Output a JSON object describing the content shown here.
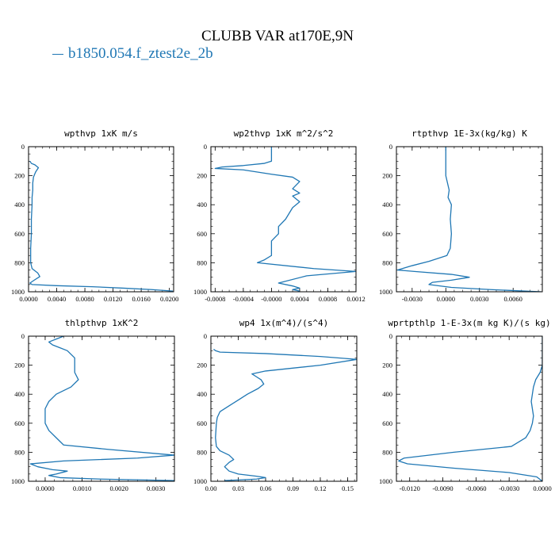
{
  "title": "CLUBB VAR at170E,9N",
  "legend": {
    "label": "b1850.054.f_ztest2e_2b",
    "color": "#1f77b4"
  },
  "chart_data": [
    {
      "type": "line",
      "title": "wpthvp  1xK m/s",
      "xlim": [
        0.0,
        0.0206
      ],
      "ylim": [
        0,
        1000
      ],
      "x_ticks": [
        0.0,
        0.004,
        0.008,
        0.012,
        0.016,
        0.02
      ],
      "x_tick_labels": [
        "0.0000",
        "0.0040",
        "0.0080",
        "0.0120",
        "0.0160",
        "0.0200"
      ],
      "y_ticks": [
        0,
        200,
        400,
        600,
        800,
        1000
      ],
      "y_tick_labels": [
        "0",
        "200",
        "400",
        "600",
        "800",
        "1000"
      ],
      "series": [
        {
          "color": "#1f77b4",
          "x": [
            0.0002,
            0.0004,
            0.0009,
            0.0014,
            0.001,
            0.0007,
            0.0006,
            0.0006,
            0.0005,
            0.0005,
            0.0004,
            0.0004,
            0.0003,
            0.0003,
            0.0005,
            0.0013,
            0.0016,
            0.0008,
            0.0002,
            0.0005,
            0.004,
            0.009,
            0.0135,
            0.0175,
            0.0205
          ],
          "y": [
            100,
            115,
            125,
            145,
            175,
            210,
            250,
            300,
            350,
            400,
            500,
            600,
            700,
            800,
            840,
            870,
            895,
            920,
            940,
            950,
            958,
            965,
            975,
            985,
            995
          ]
        }
      ]
    },
    {
      "type": "line",
      "title": "wp2thvp  1xK m^2/s^2",
      "xlim": [
        -0.00086,
        0.0012
      ],
      "ylim": [
        0,
        1000
      ],
      "x_ticks": [
        -0.0008,
        -0.0004,
        0.0,
        0.0004,
        0.0008,
        0.0012
      ],
      "x_tick_labels": [
        "-0.0008",
        "-0.0004",
        "-0.0000",
        "0.0004",
        "0.0008",
        "0.0012"
      ],
      "y_ticks": [
        0,
        200,
        400,
        600,
        800,
        1000
      ],
      "y_tick_labels": [
        "0",
        "200",
        "400",
        "600",
        "800",
        "1000"
      ],
      "series": [
        {
          "color": "#1f77b4",
          "x": [
            0.0,
            0.0,
            -0.0001,
            -0.0004,
            -0.0007,
            -0.0008,
            -0.0004,
            0.0,
            0.0003,
            0.0004,
            0.0003,
            0.0004,
            0.0003,
            0.0004,
            0.0003,
            0.0002,
            0.0001,
            0.0001,
            0.0,
            0.0,
            0.0,
            -0.0001,
            -0.0002,
            0.0006,
            0.0012,
            0.0005,
            0.0001,
            0.0003,
            0.0004,
            0.0003,
            0.0004
          ],
          "y": [
            0,
            100,
            115,
            130,
            140,
            150,
            160,
            190,
            210,
            240,
            290,
            320,
            340,
            380,
            420,
            500,
            550,
            600,
            650,
            700,
            750,
            780,
            800,
            840,
            860,
            890,
            940,
            960,
            975,
            985,
            995
          ]
        }
      ]
    },
    {
      "type": "line",
      "title": "rtpthvp  1E-3x(kg/kg) K",
      "xlim": [
        -0.0044,
        0.0086
      ],
      "ylim": [
        0,
        1000
      ],
      "x_ticks": [
        -0.003,
        0.0,
        0.003,
        0.006
      ],
      "x_tick_labels": [
        "-0.0030",
        "0.0000",
        "0.0030",
        "0.0060"
      ],
      "y_ticks": [
        0,
        200,
        400,
        600,
        800,
        1000
      ],
      "y_tick_labels": [
        "0",
        "200",
        "400",
        "600",
        "800",
        "1000"
      ],
      "series": [
        {
          "color": "#1f77b4",
          "x": [
            0.0,
            0.0,
            0.0,
            0.0003,
            0.0002,
            0.0005,
            0.0004,
            0.0005,
            0.0004,
            0.0001,
            -0.0015,
            -0.003,
            -0.0043,
            -0.0028,
            0.0005,
            0.0021,
            0.0005,
            -0.0012,
            -0.0015,
            0.0005,
            0.004,
            0.0085
          ],
          "y": [
            0,
            100,
            200,
            300,
            350,
            400,
            500,
            600,
            700,
            750,
            790,
            820,
            850,
            860,
            880,
            900,
            920,
            935,
            950,
            970,
            985,
            1000
          ]
        }
      ]
    },
    {
      "type": "line",
      "title": "thlpthvp  1xK^2",
      "xlim": [
        -0.00045,
        0.0035
      ],
      "ylim": [
        0,
        1000
      ],
      "x_ticks": [
        0.0,
        0.001,
        0.002,
        0.003
      ],
      "x_tick_labels": [
        "0.0000",
        "0.0010",
        "0.0020",
        "0.0030"
      ],
      "y_ticks": [
        0,
        200,
        400,
        600,
        800,
        1000
      ],
      "y_tick_labels": [
        "0",
        "200",
        "400",
        "600",
        "800",
        "1000"
      ],
      "series": [
        {
          "color": "#1f77b4",
          "x": [
            0.0005,
            0.0003,
            0.0001,
            0.0002,
            0.0004,
            0.0006,
            0.0008,
            0.0008,
            0.0008,
            0.0009,
            0.0007,
            0.0003,
            0.0001,
            0.0,
            0.0,
            0.0001,
            0.0003,
            0.0005,
            0.0017,
            0.0035,
            0.0025,
            0.0005,
            -0.0004,
            -0.0002,
            0.0002,
            0.0006,
            0.0003,
            0.0001,
            0.0004,
            0.0015,
            0.0035
          ],
          "y": [
            0,
            20,
            40,
            60,
            80,
            100,
            150,
            200,
            250,
            300,
            350,
            400,
            450,
            500,
            600,
            650,
            700,
            750,
            780,
            820,
            840,
            860,
            880,
            900,
            920,
            930,
            950,
            960,
            975,
            985,
            995
          ]
        }
      ]
    },
    {
      "type": "line",
      "title": "wp4  1x(m^4)/(s^4)",
      "xlim": [
        0.0,
        0.16
      ],
      "ylim": [
        0,
        1000
      ],
      "x_ticks": [
        0.0,
        0.03,
        0.06,
        0.09,
        0.12,
        0.15
      ],
      "x_tick_labels": [
        "0.00",
        "0.03",
        "0.06",
        "0.09",
        "0.12",
        "0.15"
      ],
      "y_ticks": [
        0,
        200,
        400,
        600,
        800,
        1000
      ],
      "y_tick_labels": [
        "0",
        "200",
        "400",
        "600",
        "800",
        "1000"
      ],
      "series": [
        {
          "color": "#1f77b4",
          "x": [
            0.003,
            0.005,
            0.01,
            0.06,
            0.12,
            0.16,
            0.12,
            0.06,
            0.045,
            0.05,
            0.055,
            0.058,
            0.052,
            0.04,
            0.03,
            0.02,
            0.01,
            0.007,
            0.006,
            0.005,
            0.006,
            0.01,
            0.02,
            0.025,
            0.02,
            0.015,
            0.02,
            0.03,
            0.05,
            0.06,
            0.05,
            0.015
          ],
          "y": [
            90,
            100,
            110,
            120,
            140,
            160,
            200,
            240,
            260,
            280,
            300,
            330,
            360,
            400,
            440,
            480,
            520,
            560,
            600,
            700,
            760,
            790,
            820,
            850,
            870,
            900,
            930,
            950,
            965,
            975,
            985,
            995
          ]
        }
      ]
    },
    {
      "type": "line",
      "title": "wprtpthlp  1-E-3x(m kg K)/(s kg)",
      "xlim": [
        -0.0132,
        0.0
      ],
      "ylim": [
        0,
        1000
      ],
      "x_ticks": [
        -0.012,
        -0.009,
        -0.006,
        -0.003,
        0.0
      ],
      "x_tick_labels": [
        "-0.0120",
        "-0.0090",
        "-0.0060",
        "-0.0030",
        "0.0000"
      ],
      "y_ticks": [
        0,
        200,
        400,
        600,
        800,
        1000
      ],
      "y_tick_labels": [
        "0",
        "200",
        "400",
        "600",
        "800",
        "1000"
      ],
      "series": [
        {
          "color": "#1f77b4",
          "x": [
            0.0,
            0.0,
            0.0,
            -0.0002,
            -0.0006,
            -0.0008,
            -0.0009,
            -0.001,
            -0.0009,
            -0.0008,
            -0.0009,
            -0.0011,
            -0.0015,
            -0.0028,
            -0.008,
            -0.0125,
            -0.013,
            -0.0122,
            -0.008,
            -0.003,
            -0.0005,
            0.0
          ],
          "y": [
            0,
            100,
            200,
            250,
            300,
            350,
            400,
            450,
            500,
            550,
            600,
            650,
            700,
            760,
            800,
            840,
            860,
            880,
            910,
            940,
            970,
            1000
          ]
        }
      ]
    }
  ]
}
